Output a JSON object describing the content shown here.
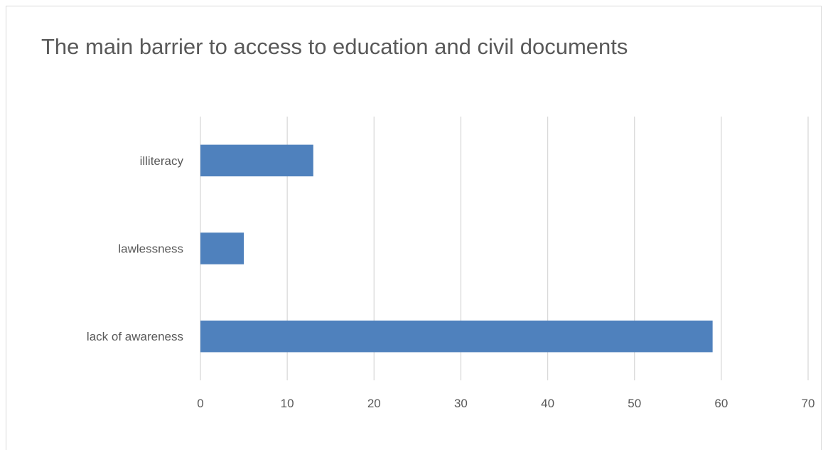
{
  "chart_data": {
    "type": "bar",
    "orientation": "horizontal",
    "title": "The main barrier to access to education and civil documents",
    "categories": [
      "illiteracy",
      "lawlessness",
      "lack of awareness"
    ],
    "values": [
      13,
      5,
      59
    ],
    "xlim": [
      0,
      70
    ],
    "xticks": [
      "0",
      "10",
      "20",
      "30",
      "40",
      "50",
      "60",
      "70"
    ],
    "xlabel": "",
    "ylabel": "",
    "grid": true,
    "legend": "none",
    "bar_color": "#4f81bd",
    "grid_color": "#d9d9d9",
    "text_color": "#595959"
  }
}
